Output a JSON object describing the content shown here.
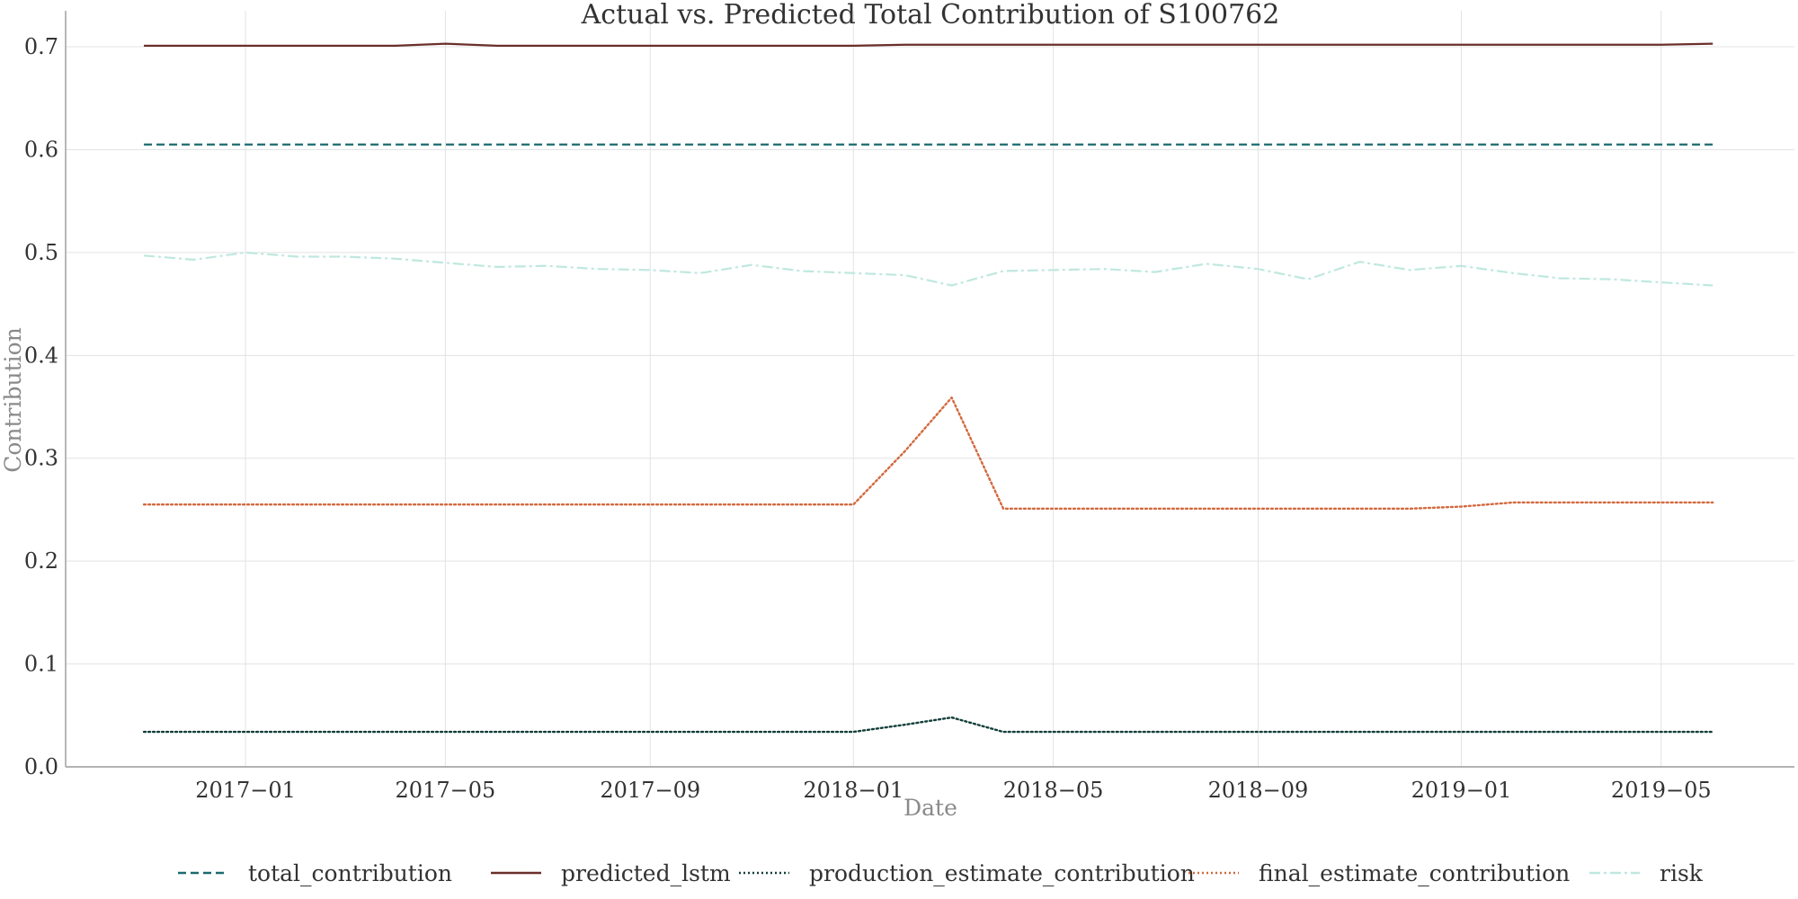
{
  "chart_data": {
    "type": "line",
    "title": "Actual vs. Predicted Total Contribution of S100762",
    "xlabel": "Date",
    "ylabel": "Contribution",
    "x": [
      "2016-11",
      "2016-12",
      "2017-01",
      "2017-02",
      "2017-03",
      "2017-04",
      "2017-05",
      "2017-06",
      "2017-07",
      "2017-08",
      "2017-09",
      "2017-10",
      "2017-11",
      "2017-12",
      "2018-01",
      "2018-02",
      "2018-03",
      "2018-04",
      "2018-05",
      "2018-06",
      "2018-07",
      "2018-08",
      "2018-09",
      "2018-10",
      "2018-11",
      "2018-12",
      "2019-01",
      "2019-02",
      "2019-03",
      "2019-04",
      "2019-05",
      "2019-06"
    ],
    "x_ticks": [
      "2017-01",
      "2017-05",
      "2017-09",
      "2018-01",
      "2018-05",
      "2018-09",
      "2019-01",
      "2019-05"
    ],
    "x_tick_labels": [
      "2017−01",
      "2017−05",
      "2017−09",
      "2018−01",
      "2018−05",
      "2018−09",
      "2019−01",
      "2019−05"
    ],
    "xlim": [
      "2016-09-15",
      "2019-07-20"
    ],
    "ylim": [
      0.0,
      0.735
    ],
    "y_ticks": [
      0.0,
      0.1,
      0.2,
      0.3,
      0.4,
      0.5,
      0.6,
      0.7
    ],
    "y_tick_labels": [
      "0.0",
      "0.1",
      "0.2",
      "0.3",
      "0.4",
      "0.5",
      "0.6",
      "0.7"
    ],
    "grid": true,
    "legend_position": "bottom",
    "series": [
      {
        "name": "total_contribution",
        "color": "#1b6b6f",
        "style": "dashed",
        "values": [
          0.605,
          0.605,
          0.605,
          0.605,
          0.605,
          0.605,
          0.605,
          0.605,
          0.605,
          0.605,
          0.605,
          0.605,
          0.605,
          0.605,
          0.605,
          0.605,
          0.605,
          0.605,
          0.605,
          0.605,
          0.605,
          0.605,
          0.605,
          0.605,
          0.605,
          0.605,
          0.605,
          0.605,
          0.605,
          0.605,
          0.605,
          0.605
        ]
      },
      {
        "name": "predicted_lstm",
        "color": "#6b2f2a",
        "style": "solid",
        "values": [
          0.701,
          0.701,
          0.701,
          0.701,
          0.701,
          0.701,
          0.703,
          0.701,
          0.701,
          0.701,
          0.701,
          0.701,
          0.701,
          0.701,
          0.701,
          0.702,
          0.702,
          0.702,
          0.702,
          0.702,
          0.702,
          0.702,
          0.702,
          0.702,
          0.702,
          0.702,
          0.702,
          0.702,
          0.702,
          0.702,
          0.702,
          0.703
        ]
      },
      {
        "name": "production_estimate_contribution",
        "color": "#123f3a",
        "style": "dotted",
        "values": [
          0.034,
          0.034,
          0.034,
          0.034,
          0.034,
          0.034,
          0.034,
          0.034,
          0.034,
          0.034,
          0.034,
          0.034,
          0.034,
          0.034,
          0.034,
          0.041,
          0.048,
          0.034,
          0.034,
          0.034,
          0.034,
          0.034,
          0.034,
          0.034,
          0.034,
          0.034,
          0.034,
          0.034,
          0.034,
          0.034,
          0.034,
          0.034
        ]
      },
      {
        "name": "final_estimate_contribution",
        "color": "#d2693e",
        "style": "dotted",
        "values": [
          0.255,
          0.255,
          0.255,
          0.255,
          0.255,
          0.255,
          0.255,
          0.255,
          0.255,
          0.255,
          0.255,
          0.255,
          0.255,
          0.255,
          0.255,
          0.307,
          0.359,
          0.251,
          0.251,
          0.251,
          0.251,
          0.251,
          0.251,
          0.251,
          0.251,
          0.251,
          0.253,
          0.257,
          0.257,
          0.257,
          0.257,
          0.257
        ]
      },
      {
        "name": "risk",
        "color": "#bfe8df",
        "style": "dashdot",
        "values": [
          0.497,
          0.493,
          0.5,
          0.496,
          0.496,
          0.494,
          0.49,
          0.486,
          0.487,
          0.484,
          0.483,
          0.48,
          0.488,
          0.482,
          0.48,
          0.478,
          0.468,
          0.482,
          0.483,
          0.484,
          0.481,
          0.489,
          0.484,
          0.474,
          0.491,
          0.483,
          0.487,
          0.48,
          0.475,
          0.474,
          0.471,
          0.468
        ]
      }
    ]
  }
}
